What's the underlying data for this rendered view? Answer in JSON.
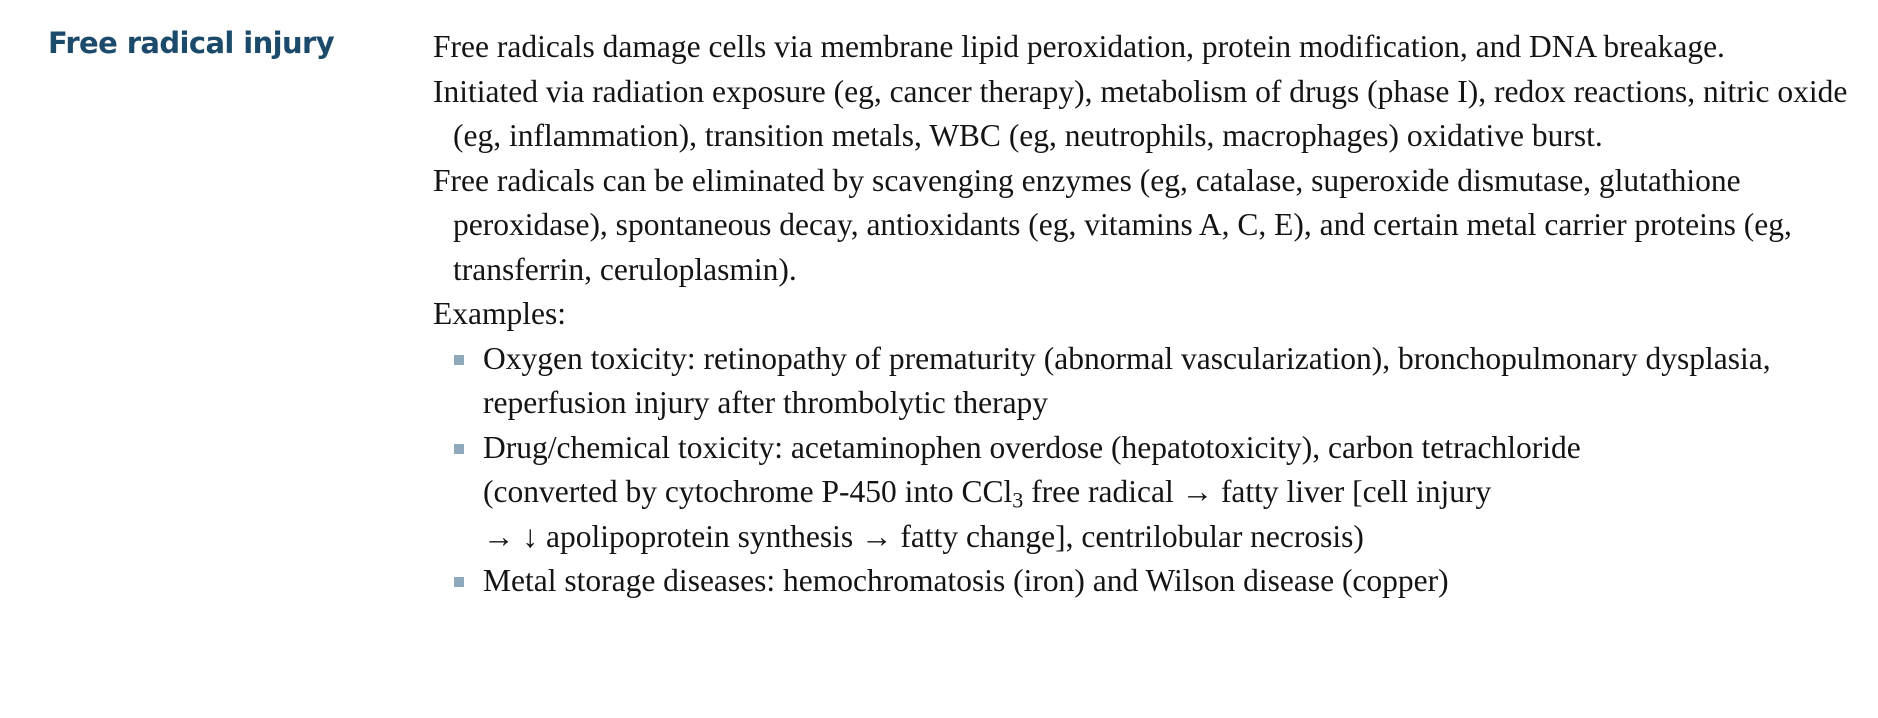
{
  "heading": "Free radical injury",
  "paragraphs": [
    "Free radicals damage cells via membrane lipid peroxidation, protein modification, and DNA breakage.",
    "Initiated via radiation exposure (eg, cancer therapy), metabolism of drugs (phase I), redox reactions, nitric oxide (eg, inflammation), transition metals, WBC (eg, neutrophils, macrophages) oxidative burst.",
    "Free radicals can be eliminated by scavenging enzymes (eg, catalase, superoxide dismutase, glutathione peroxidase), spontaneous decay, antioxidants (eg, vitamins A, C, E), and certain metal carrier proteins (eg, transferrin, ceruloplasmin)."
  ],
  "examples_label": "Examples:",
  "examples": [
    {
      "text": "Oxygen toxicity: retinopathy of prematurity (abnormal vascularization), bronchopulmonary dysplasia, reperfusion injury after thrombolytic therapy"
    },
    {
      "line1": "Drug/chemical toxicity: acetaminophen overdose (hepatotoxicity), carbon tetrachloride",
      "line2_before": "(converted by cytochrome P-450 into CCl",
      "line2_sub": "3",
      "line2_after": " free radical → fatty liver [cell injury",
      "line3": "→ ↓ apolipoprotein synthesis → fatty change], centrilobular necrosis)"
    },
    {
      "text": "Metal storage diseases: hemochromatosis (iron) and Wilson disease (copper)"
    }
  ],
  "colors": {
    "heading": "#1b4a6b",
    "bullet_marker": "#8fa9bc",
    "body_text": "#141414"
  }
}
